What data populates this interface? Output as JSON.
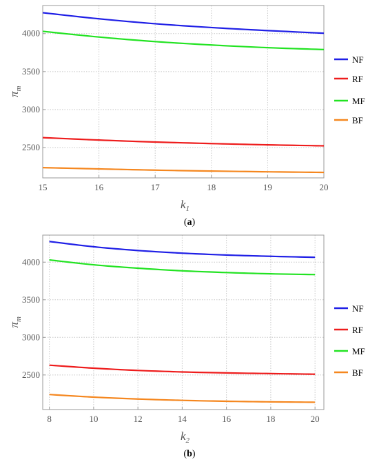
{
  "chart_data": [
    {
      "type": "line",
      "caption": {
        "open": "(",
        "letter": "a",
        "close": ")"
      },
      "xlabel": {
        "main": "k",
        "sub": "1"
      },
      "ylabel": {
        "main": "π",
        "sub": "m"
      },
      "xlim": [
        15,
        20
      ],
      "ylim": [
        2100,
        4370
      ],
      "xticks": [
        15,
        16,
        17,
        18,
        19,
        20
      ],
      "yticks": [
        2500,
        3000,
        3500,
        4000
      ],
      "grid": true,
      "legend_position": "right",
      "x": [
        15,
        16,
        17,
        18,
        19,
        20
      ],
      "series": [
        {
          "name": "NF",
          "color": "#1f1fe6",
          "values": [
            4275,
            4195,
            4130,
            4080,
            4040,
            4005
          ]
        },
        {
          "name": "RF",
          "color": "#ee1c1c",
          "values": [
            2630,
            2598,
            2572,
            2552,
            2535,
            2522
          ]
        },
        {
          "name": "MF",
          "color": "#22e322",
          "values": [
            4030,
            3955,
            3895,
            3850,
            3815,
            3790
          ]
        },
        {
          "name": "BF",
          "color": "#f5871f",
          "values": [
            2235,
            2218,
            2202,
            2190,
            2180,
            2172
          ]
        }
      ]
    },
    {
      "type": "line",
      "caption": {
        "open": "(",
        "letter": "b",
        "close": ")"
      },
      "xlabel": {
        "main": "k",
        "sub": "2"
      },
      "ylabel": {
        "main": "π",
        "sub": "m"
      },
      "xlim": [
        7.7,
        20.4
      ],
      "ylim": [
        2040,
        4360
      ],
      "xticks": [
        8,
        10,
        12,
        14,
        16,
        18,
        20
      ],
      "yticks": [
        2500,
        3000,
        3500,
        4000
      ],
      "grid": true,
      "legend_position": "right",
      "x": [
        8,
        10,
        12,
        14,
        16,
        18,
        20
      ],
      "series": [
        {
          "name": "NF",
          "color": "#1f1fe6",
          "values": [
            4275,
            4205,
            4155,
            4120,
            4095,
            4078,
            4065
          ]
        },
        {
          "name": "RF",
          "color": "#ee1c1c",
          "values": [
            2630,
            2590,
            2560,
            2540,
            2527,
            2518,
            2510
          ]
        },
        {
          "name": "MF",
          "color": "#22e322",
          "values": [
            4030,
            3965,
            3920,
            3885,
            3862,
            3845,
            3835
          ]
        },
        {
          "name": "BF",
          "color": "#f5871f",
          "values": [
            2240,
            2205,
            2180,
            2162,
            2150,
            2142,
            2137
          ]
        }
      ]
    }
  ]
}
